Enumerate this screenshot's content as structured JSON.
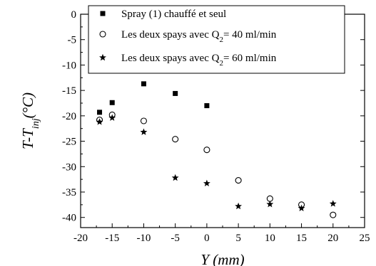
{
  "chart_data": {
    "type": "scatter",
    "xlabel": "Y (mm)",
    "ylabel": {
      "main": "T-T",
      "sub": "inj",
      "unit": "(°C)"
    },
    "xlim": [
      -20,
      25
    ],
    "ylim": [
      -42,
      0
    ],
    "xticks": [
      -20,
      -15,
      -10,
      -5,
      0,
      5,
      10,
      15,
      20,
      25
    ],
    "yticks": [
      0,
      -5,
      -10,
      -15,
      -20,
      -25,
      -30,
      -35,
      -40
    ],
    "grid": false,
    "legend_position": "top-right",
    "series": [
      {
        "name": "Spray (1) chauffé et seul",
        "marker": "square-filled",
        "points": [
          [
            -17,
            -19.3
          ],
          [
            -15,
            -17.4
          ],
          [
            -10,
            -13.7
          ],
          [
            -5,
            -15.6
          ],
          [
            0,
            -18.0
          ]
        ]
      },
      {
        "name_main": "Les deux spays avec Q",
        "name_sub": "2",
        "name_tail": "= 40 ml/min",
        "marker": "circle-open",
        "points": [
          [
            -17,
            -20.8
          ],
          [
            -15,
            -19.8
          ],
          [
            -10,
            -21.0
          ],
          [
            -5,
            -24.6
          ],
          [
            0,
            -26.7
          ],
          [
            5,
            -32.7
          ],
          [
            10,
            -36.3
          ],
          [
            15,
            -37.5
          ],
          [
            20,
            -39.5
          ]
        ]
      },
      {
        "name_main": "Les deux spays avec Q",
        "name_sub": "2",
        "name_tail": "= 60 ml/min",
        "marker": "star-filled",
        "points": [
          [
            -17,
            -21.2
          ],
          [
            -15,
            -20.4
          ],
          [
            -10,
            -23.2
          ],
          [
            -5,
            -32.2
          ],
          [
            0,
            -33.3
          ],
          [
            5,
            -37.8
          ],
          [
            10,
            -37.4
          ],
          [
            15,
            -38.2
          ],
          [
            20,
            -37.3
          ]
        ]
      }
    ]
  }
}
